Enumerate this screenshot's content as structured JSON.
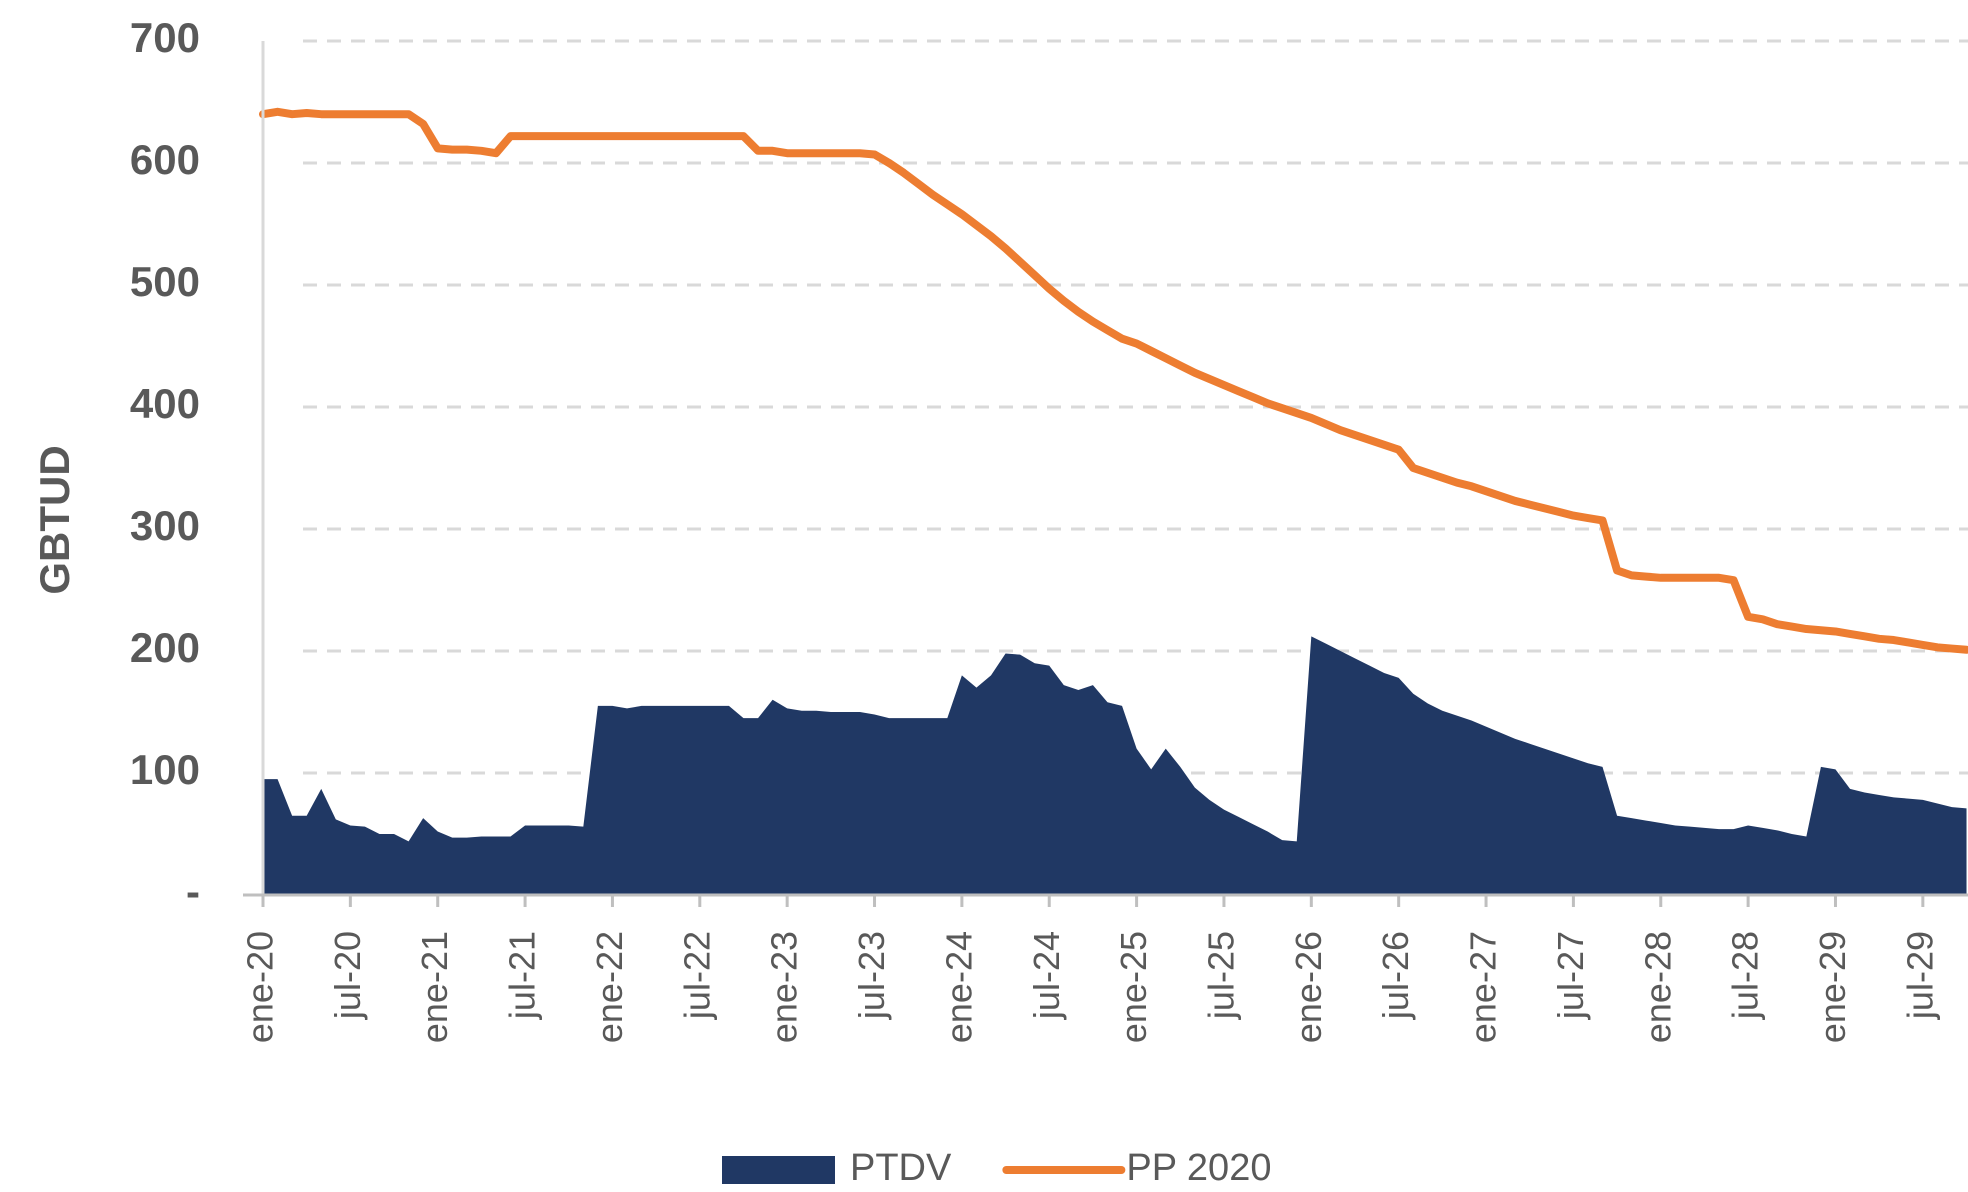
{
  "chart_data": {
    "type": "line",
    "y_label": "GBTUD",
    "categories": [
      "ene-20",
      null,
      null,
      null,
      null,
      null,
      "jul-20",
      null,
      null,
      null,
      null,
      null,
      "ene-21",
      null,
      null,
      null,
      null,
      null,
      "jul-21",
      null,
      null,
      null,
      null,
      null,
      "ene-22",
      null,
      null,
      null,
      null,
      null,
      "jul-22",
      null,
      null,
      null,
      null,
      null,
      "ene-23",
      null,
      null,
      null,
      null,
      null,
      "jul-23",
      null,
      null,
      null,
      null,
      null,
      "ene-24",
      null,
      null,
      null,
      null,
      null,
      "jul-24",
      null,
      null,
      null,
      null,
      null,
      "ene-25",
      null,
      null,
      null,
      null,
      null,
      "jul-25",
      null,
      null,
      null,
      null,
      null,
      "ene-26",
      null,
      null,
      null,
      null,
      null,
      "jul-26",
      null,
      null,
      null,
      null,
      null,
      "ene-27",
      null,
      null,
      null,
      null,
      null,
      "jul-27",
      null,
      null,
      null,
      null,
      null,
      "ene-28",
      null,
      null,
      null,
      null,
      null,
      "jul-28",
      null,
      null,
      null,
      null,
      null,
      "ene-29",
      null,
      null,
      null,
      null,
      null,
      "jul-29",
      null,
      null,
      null
    ],
    "series": [
      {
        "name": "PTDV",
        "type": "area",
        "color": "#203864",
        "values": [
          95,
          95,
          65,
          65,
          87,
          62,
          57,
          56,
          50,
          50,
          44,
          63,
          52,
          47,
          47,
          48,
          48,
          48,
          57,
          57,
          57,
          57,
          56,
          155,
          155,
          153,
          155,
          155,
          155,
          155,
          155,
          155,
          155,
          145,
          145,
          160,
          153,
          151,
          151,
          150,
          150,
          150,
          148,
          145,
          145,
          145,
          145,
          145,
          180,
          170,
          180,
          198,
          197,
          190,
          188,
          172,
          168,
          172,
          158,
          155,
          120,
          103,
          120,
          105,
          88,
          78,
          70,
          64,
          58,
          52,
          45,
          44,
          212,
          206,
          200,
          194,
          188,
          182,
          178,
          165,
          157,
          151,
          147,
          143,
          138,
          133,
          128,
          124,
          120,
          116,
          112,
          108,
          105,
          65,
          63,
          61,
          59,
          57,
          56,
          55,
          54,
          54,
          57,
          55,
          53,
          50,
          48,
          105,
          103,
          87,
          84,
          82,
          80,
          79,
          78,
          75,
          72,
          71
        ]
      },
      {
        "name": "PP 2020",
        "type": "line",
        "color": "#ED7D31",
        "values": [
          640,
          642,
          640,
          641,
          640,
          640,
          640,
          640,
          640,
          640,
          640,
          632,
          612,
          611,
          611,
          610,
          608,
          622,
          622,
          622,
          622,
          622,
          622,
          622,
          622,
          622,
          622,
          622,
          622,
          622,
          622,
          622,
          622,
          622,
          610,
          610,
          608,
          608,
          608,
          608,
          608,
          608,
          607,
          600,
          592,
          583,
          574,
          566,
          558,
          549,
          540,
          530,
          519,
          508,
          497,
          487,
          478,
          470,
          463,
          456,
          452,
          446,
          440,
          434,
          428,
          423,
          418,
          413,
          408,
          403,
          399,
          395,
          391,
          386,
          381,
          377,
          373,
          369,
          365,
          350,
          346,
          342,
          338,
          335,
          331,
          327,
          323,
          320,
          317,
          314,
          311,
          309,
          307,
          266,
          262,
          261,
          260,
          260,
          260,
          260,
          260,
          258,
          228,
          226,
          222,
          220,
          218,
          217,
          216,
          214,
          212,
          210,
          209,
          207,
          205,
          203,
          202,
          201
        ]
      }
    ],
    "ylim": [
      0,
      700
    ],
    "yticks": [
      {
        "value": 0,
        "label": "-"
      },
      100,
      200,
      300,
      400,
      500,
      600,
      700
    ],
    "grid": true,
    "legend": "bottom"
  }
}
